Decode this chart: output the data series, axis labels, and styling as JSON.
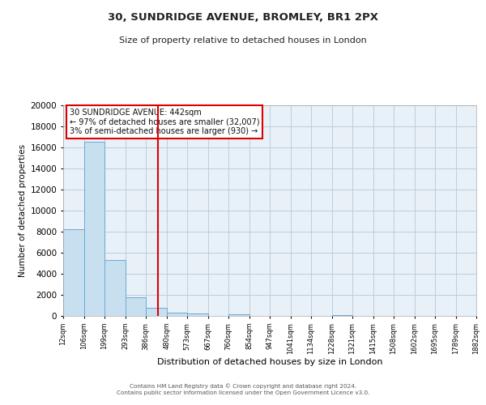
{
  "title": "30, SUNDRIDGE AVENUE, BROMLEY, BR1 2PX",
  "subtitle": "Size of property relative to detached houses in London",
  "xlabel": "Distribution of detached houses by size in London",
  "ylabel": "Number of detached properties",
  "bar_color": "#c8dff0",
  "bar_edge_color": "#6aaad4",
  "background_color": "#ffffff",
  "plot_bg_color": "#e8f0f8",
  "grid_color": "#b8c8d8",
  "vline_color": "#dd0000",
  "vline_x": 442,
  "bin_edges": [
    12,
    106,
    199,
    293,
    386,
    480,
    573,
    667,
    760,
    854,
    947,
    1041,
    1134,
    1228,
    1321,
    1415,
    1508,
    1602,
    1695,
    1789,
    1882
  ],
  "bin_labels": [
    "12sqm",
    "106sqm",
    "199sqm",
    "293sqm",
    "386sqm",
    "480sqm",
    "573sqm",
    "667sqm",
    "760sqm",
    "854sqm",
    "947sqm",
    "1041sqm",
    "1134sqm",
    "1228sqm",
    "1321sqm",
    "1415sqm",
    "1508sqm",
    "1602sqm",
    "1695sqm",
    "1789sqm",
    "1882sqm"
  ],
  "bar_heights": [
    8200,
    16500,
    5300,
    1800,
    750,
    270,
    200,
    0,
    150,
    0,
    0,
    0,
    0,
    50,
    0,
    0,
    0,
    0,
    0,
    0
  ],
  "ylim": [
    0,
    20000
  ],
  "yticks": [
    0,
    2000,
    4000,
    6000,
    8000,
    10000,
    12000,
    14000,
    16000,
    18000,
    20000
  ],
  "annotation_title": "30 SUNDRIDGE AVENUE: 442sqm",
  "annotation_line1": "← 97% of detached houses are smaller (32,007)",
  "annotation_line2": "3% of semi-detached houses are larger (930) →",
  "footer1": "Contains HM Land Registry data © Crown copyright and database right 2024.",
  "footer2": "Contains public sector information licensed under the Open Government Licence v3.0."
}
